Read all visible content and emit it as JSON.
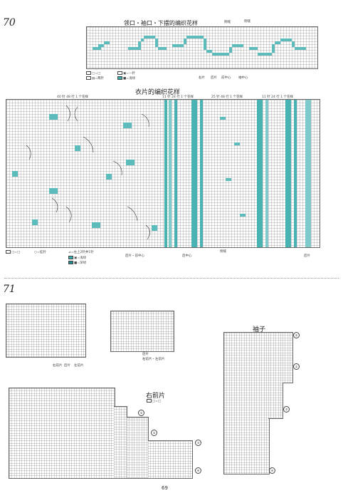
{
  "section70": {
    "number": "70",
    "top_title": "领口・袖口・下摆的编织花样",
    "top_legend": [
      "□=□",
      "▣=一针",
      "▤=两针",
      "■=浅绿"
    ],
    "top_bottom_labels": [
      "右片",
      "后片",
      "前中心",
      "袖中心"
    ],
    "top_right_labels": [
      "侧缝",
      "侧缝"
    ],
    "main_title": "衣片的编织花样",
    "main_header_labels": [
      "40 针 48 行 1 个花样",
      "11 针 24 行 1 个花样",
      "25 针 48 行 1 个花样",
      "11 针 24 行 1 个花样"
    ],
    "main_legend": [
      "□=□",
      "○=挂针",
      "⊿=左上2针并1针",
      "▣=浅绿",
      "■=深绿"
    ],
    "main_bottom_labels": [
      "后片・前中心",
      "后中心",
      "侧缝",
      "后片"
    ],
    "colors": {
      "teal": "#49b3b3",
      "light_teal": "#9fd8d8",
      "grid": "#777777"
    }
  },
  "section71": {
    "number": "71",
    "chart_a_labels": [
      "右前片",
      "后片",
      "左前片"
    ],
    "chart_b_labels": [
      "后片",
      "右前片・左前片"
    ],
    "sleeve_title": "袖子",
    "front_title": "右前片",
    "front_legend": "□=□",
    "circle_marks": [
      "①",
      "②",
      "③",
      "④"
    ]
  },
  "page_number": "69"
}
